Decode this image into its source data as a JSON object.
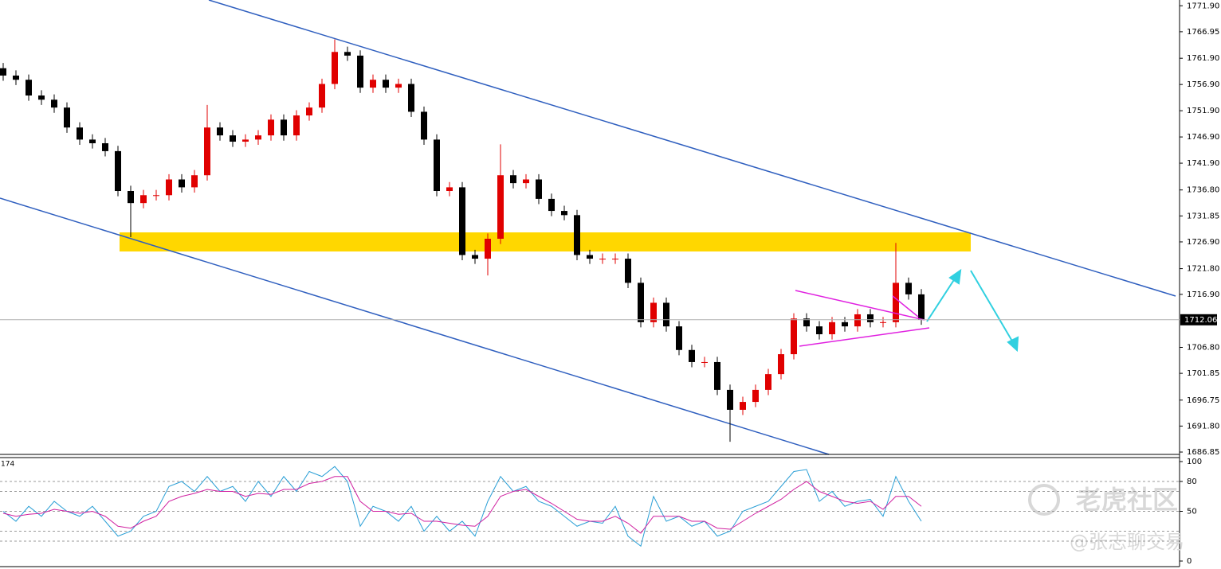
{
  "chart_data": [
    {
      "type": "candlestick",
      "open": [
        1760.0,
        1758.6,
        1757.8,
        1754.8,
        1754.0,
        1752.5,
        1748.7,
        1746.4,
        1745.7,
        1744.2,
        1736.6,
        1734.3,
        1735.8,
        1735.8,
        1738.8,
        1737.3,
        1739.6,
        1748.7,
        1747.2,
        1746.0,
        1746.4,
        1747.2,
        1750.2,
        1747.2,
        1751.0,
        1752.5,
        1757.0,
        1763.1,
        1762.4,
        1756.3,
        1757.8,
        1756.3,
        1757.0,
        1751.7,
        1746.4,
        1736.6,
        1737.3,
        1724.4,
        1723.7,
        1727.5,
        1739.6,
        1738.1,
        1738.8,
        1735.1,
        1732.8,
        1732.0,
        1724.4,
        1723.7,
        1723.7,
        1723.7,
        1719.1,
        1711.6,
        1715.3,
        1710.8,
        1706.3,
        1704.0,
        1704.0,
        1698.7,
        1694.9,
        1696.4,
        1698.7,
        1701.7,
        1705.5,
        1712.3,
        1710.8,
        1709.3,
        1711.6,
        1710.8,
        1713.1,
        1711.6,
        1711.6,
        1719.1,
        1716.9
      ],
      "high": [
        1761.0,
        1759.6,
        1758.8,
        1755.8,
        1755.0,
        1753.5,
        1749.7,
        1747.4,
        1746.7,
        1745.2,
        1737.6,
        1736.8,
        1736.8,
        1739.8,
        1739.8,
        1740.6,
        1753.0,
        1749.7,
        1748.2,
        1747.4,
        1748.2,
        1751.2,
        1751.2,
        1752.0,
        1753.5,
        1758.0,
        1765.5,
        1764.1,
        1763.4,
        1758.8,
        1758.8,
        1758.0,
        1758.0,
        1752.7,
        1747.4,
        1738.3,
        1738.3,
        1725.4,
        1728.5,
        1745.5,
        1740.6,
        1739.8,
        1739.8,
        1736.1,
        1733.8,
        1733.0,
        1725.4,
        1724.7,
        1724.7,
        1724.7,
        1720.1,
        1716.3,
        1716.3,
        1711.8,
        1707.3,
        1705.0,
        1705.0,
        1699.7,
        1697.4,
        1699.7,
        1702.7,
        1706.5,
        1713.3,
        1713.3,
        1711.8,
        1712.6,
        1712.6,
        1714.1,
        1714.1,
        1712.6,
        1726.7,
        1720.1,
        1717.9
      ],
      "low": [
        1757.6,
        1756.8,
        1753.8,
        1753.0,
        1751.5,
        1747.7,
        1745.4,
        1744.7,
        1743.2,
        1735.6,
        1727.8,
        1733.3,
        1734.8,
        1734.8,
        1736.3,
        1736.3,
        1738.6,
        1746.2,
        1745.0,
        1745.0,
        1745.4,
        1746.2,
        1746.2,
        1746.2,
        1750.0,
        1751.5,
        1756.0,
        1761.4,
        1755.3,
        1755.3,
        1755.3,
        1755.3,
        1750.7,
        1745.4,
        1735.6,
        1735.6,
        1723.4,
        1722.7,
        1720.5,
        1726.5,
        1737.1,
        1737.1,
        1734.1,
        1731.8,
        1731.0,
        1723.4,
        1722.7,
        1722.7,
        1722.7,
        1718.1,
        1710.6,
        1710.6,
        1709.8,
        1705.3,
        1703.0,
        1703.0,
        1697.7,
        1688.8,
        1693.9,
        1695.4,
        1697.7,
        1700.7,
        1704.5,
        1709.8,
        1708.3,
        1708.3,
        1709.8,
        1709.8,
        1710.6,
        1710.6,
        1710.6,
        1715.9,
        1711.1
      ],
      "close": [
        1758.6,
        1757.8,
        1754.8,
        1754.0,
        1752.5,
        1748.7,
        1746.4,
        1745.7,
        1744.2,
        1736.6,
        1734.3,
        1735.8,
        1735.8,
        1738.8,
        1737.3,
        1739.6,
        1748.7,
        1747.2,
        1746.0,
        1746.4,
        1747.2,
        1750.2,
        1747.2,
        1751.0,
        1752.5,
        1757.0,
        1763.1,
        1762.4,
        1756.3,
        1757.8,
        1756.3,
        1757.0,
        1751.7,
        1746.4,
        1736.6,
        1737.3,
        1724.4,
        1723.7,
        1727.5,
        1739.6,
        1738.1,
        1738.8,
        1735.1,
        1732.8,
        1732.0,
        1724.4,
        1723.7,
        1723.7,
        1723.7,
        1719.1,
        1711.6,
        1715.3,
        1710.8,
        1706.3,
        1704.0,
        1704.0,
        1698.7,
        1694.9,
        1696.4,
        1698.7,
        1701.7,
        1705.5,
        1712.3,
        1710.8,
        1709.3,
        1711.6,
        1710.8,
        1713.1,
        1711.6,
        1711.6,
        1719.1,
        1716.9,
        1712.1
      ],
      "up_color": "#e00000",
      "down_color": "#000000",
      "ylim": [
        1686.4,
        1773.0
      ],
      "yticks": [
        {
          "value": 1771.9,
          "label": "1771.90"
        },
        1766.95,
        {
          "value": 1761.9,
          "label": "1761.90"
        },
        {
          "value": 1756.9,
          "label": "1756.90"
        },
        {
          "value": 1751.9,
          "label": "1751.90"
        },
        {
          "value": 1746.9,
          "label": "1746.90"
        },
        {
          "value": 1741.9,
          "label": "1741.90"
        },
        {
          "value": 1736.8,
          "label": "1736.80"
        },
        1731.85,
        {
          "value": 1726.9,
          "label": "1726.90"
        },
        {
          "value": 1721.8,
          "label": "1721.80"
        },
        {
          "value": 1716.9,
          "label": "1716.90"
        },
        {
          "value": 1706.8,
          "label": "1706.80"
        },
        1701.85,
        1696.75,
        {
          "value": 1691.8,
          "label": "1691.80"
        },
        1686.85
      ],
      "last_price": 1712.06
    },
    {
      "type": "line",
      "label": "174",
      "series": [
        {
          "color": "#2a9fd6",
          "values": [
            50,
            40,
            55,
            45,
            60,
            50,
            45,
            55,
            40,
            25,
            30,
            45,
            50,
            75,
            80,
            70,
            85,
            70,
            75,
            60,
            80,
            65,
            85,
            70,
            90,
            85,
            95,
            80,
            35,
            55,
            50,
            40,
            55,
            30,
            45,
            30,
            40,
            25,
            60,
            85,
            70,
            75,
            60,
            55,
            45,
            35,
            40,
            38,
            55,
            25,
            15,
            65,
            40,
            45,
            35,
            40,
            25,
            30,
            50,
            55,
            60,
            75,
            90,
            92,
            60,
            70,
            55,
            60,
            62,
            45,
            85,
            60,
            40
          ]
        },
        {
          "color": "#d020a0",
          "values": [
            48,
            45,
            47,
            48,
            52,
            50,
            48,
            50,
            45,
            35,
            33,
            40,
            45,
            60,
            65,
            68,
            72,
            70,
            70,
            65,
            68,
            67,
            72,
            72,
            78,
            80,
            85,
            85,
            60,
            50,
            50,
            47,
            48,
            40,
            40,
            38,
            36,
            35,
            45,
            65,
            70,
            72,
            65,
            58,
            50,
            42,
            40,
            40,
            45,
            38,
            28,
            45,
            45,
            45,
            40,
            40,
            33,
            32,
            40,
            48,
            55,
            62,
            72,
            80,
            70,
            65,
            60,
            58,
            60,
            52,
            65,
            65,
            55
          ]
        }
      ],
      "ylim": [
        -5.6,
        104
      ],
      "yticks": [
        0,
        50,
        80,
        100
      ],
      "levels": [
        80,
        70,
        50,
        30,
        20
      ]
    }
  ],
  "watermark": {
    "logo": "老虎社区",
    "author": "@张志聊交易"
  }
}
